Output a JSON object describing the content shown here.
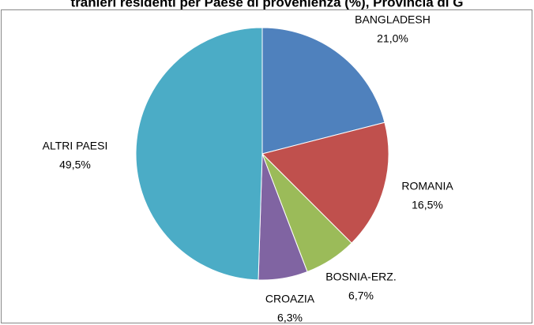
{
  "chart_data": {
    "type": "pie",
    "title": "tranieri residenti per Paese di provenienza (%), Provincia di G",
    "categories": [
      "BANGLADESH",
      "ROMANIA",
      "BOSNIA-ERZ.",
      "CROAZIA",
      "ALTRI PAESI"
    ],
    "values": [
      21.0,
      16.5,
      6.7,
      6.3,
      49.5
    ],
    "value_labels": [
      "21,0%",
      "16,5%",
      "6,7%",
      "6,3%",
      "49,5%"
    ],
    "colors": [
      "#4f81bd",
      "#c0504d",
      "#9bbb59",
      "#8064a2",
      "#4bacc6"
    ]
  }
}
